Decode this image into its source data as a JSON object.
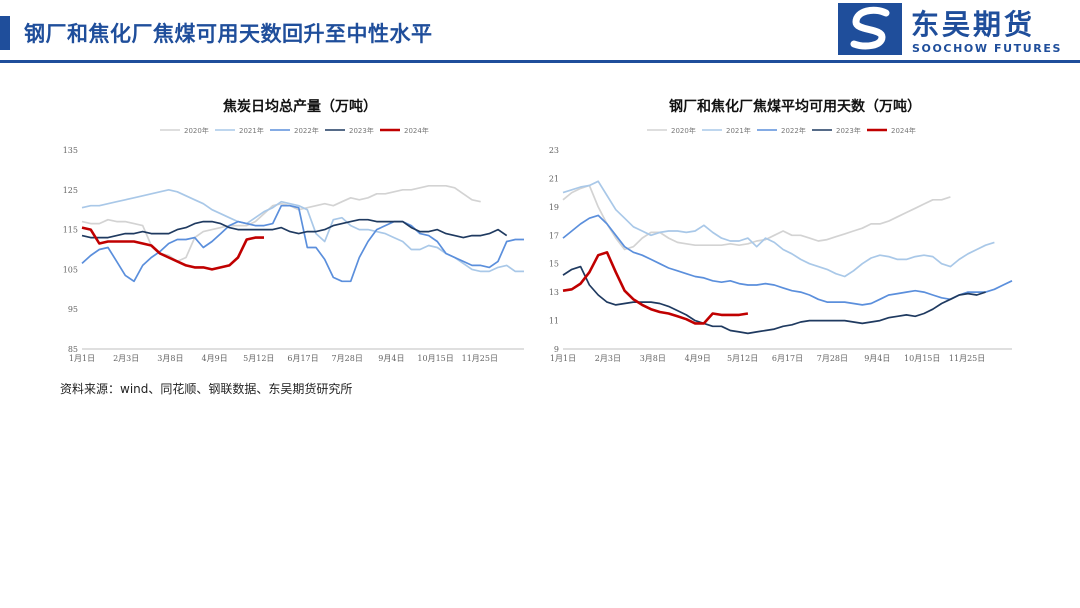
{
  "header": {
    "title": "钢厂和焦化厂焦煤可用天数回升至中性水平",
    "logo_cn": "东吴期货",
    "logo_en": "SOOCHOW FUTURES"
  },
  "source": "资料来源：wind、同花顺、钢联数据、东吴期货研究所",
  "colors": {
    "brand": "#1f4e9b",
    "2020年": "#d3d3d3",
    "2021年": "#a9c8e8",
    "2022年": "#5b8fdc",
    "2023年": "#1f3a60",
    "2024年": "#c00000"
  },
  "chart_data": [
    {
      "type": "line",
      "title": "焦炭日均总产量（万吨）",
      "xlabel": "",
      "ylabel": "",
      "x_ticks": [
        "1月1日",
        "2月3日",
        "3月8日",
        "4月9日",
        "5月12日",
        "6月17日",
        "7月28日",
        "9月4日",
        "10月15日",
        "11月25日"
      ],
      "y_ticks": [
        85,
        95,
        105,
        115,
        125,
        135
      ],
      "ylim": [
        85,
        135
      ],
      "weeks": 52,
      "legend_position": "top",
      "series": [
        {
          "name": "2020年",
          "values": [
            117,
            116.5,
            116.5,
            117.5,
            117,
            117,
            116.5,
            116,
            111,
            109,
            108.5,
            107,
            108,
            113,
            114.5,
            115,
            115.5,
            116,
            116,
            116,
            117,
            119,
            121,
            121.5,
            121,
            120,
            120.5,
            121,
            121.5,
            121,
            122,
            123,
            122.5,
            123,
            124,
            124,
            124.5,
            125,
            125,
            125.5,
            126,
            126,
            126,
            125.5,
            124,
            122.5,
            122,
            null,
            null,
            null,
            null,
            null
          ]
        },
        {
          "name": "2021年",
          "values": [
            120.5,
            121,
            121,
            121.5,
            122,
            122.5,
            123,
            123.5,
            124,
            124.5,
            125,
            124.5,
            123.5,
            122.5,
            121.5,
            120,
            119,
            118,
            117,
            116.5,
            118,
            119.5,
            120.5,
            122,
            121.5,
            121,
            120,
            114,
            112,
            117.5,
            118,
            116,
            115,
            115,
            114.5,
            114,
            113,
            112,
            110,
            110,
            111,
            110.5,
            109,
            108,
            106.5,
            105,
            104.5,
            104.5,
            105.5,
            106,
            104.5,
            104.5
          ]
        },
        {
          "name": "2022年",
          "values": [
            106.5,
            108.5,
            110,
            110.5,
            107,
            103.5,
            102,
            106,
            108,
            109.5,
            111.5,
            112.5,
            112.5,
            113,
            110.5,
            112,
            114,
            116,
            117,
            116.5,
            116,
            116,
            116.5,
            121,
            121,
            120.5,
            110.5,
            110.5,
            107.5,
            103,
            102,
            102,
            108,
            112,
            115,
            116,
            117,
            117,
            116,
            114,
            113.5,
            112,
            109,
            108,
            107,
            106,
            106,
            105.5,
            107,
            112,
            112.5,
            112.5
          ]
        },
        {
          "name": "2023年",
          "values": [
            113.5,
            113,
            113,
            113,
            113.5,
            114,
            114,
            114.5,
            114,
            114,
            114,
            115,
            115.5,
            116.5,
            117,
            117,
            116.5,
            115.5,
            115,
            115,
            115,
            115,
            115,
            115.5,
            114.5,
            114,
            114.5,
            114.5,
            115,
            116,
            116.5,
            117,
            117.5,
            117.5,
            117,
            117,
            117,
            117,
            115.5,
            114.5,
            114.5,
            115,
            114,
            113.5,
            113,
            113.5,
            113.5,
            114,
            115,
            113.5,
            null,
            null
          ]
        },
        {
          "name": "2024年",
          "values": [
            115.5,
            115,
            111.5,
            112,
            112,
            112,
            112,
            111.5,
            111,
            109,
            108,
            107,
            106,
            105.5,
            105.5,
            105,
            105.5,
            106,
            108,
            112.5,
            113,
            113,
            null,
            null,
            null,
            null,
            null,
            null,
            null,
            null,
            null,
            null,
            null,
            null,
            null,
            null,
            null,
            null,
            null,
            null,
            null,
            null,
            null,
            null,
            null,
            null,
            null,
            null,
            null,
            null,
            null,
            null
          ]
        }
      ]
    },
    {
      "type": "line",
      "title": "钢厂和焦化厂焦煤平均可用天数（万吨）",
      "xlabel": "",
      "ylabel": "",
      "x_ticks": [
        "1月1日",
        "2月3日",
        "3月8日",
        "4月9日",
        "5月12日",
        "6月17日",
        "7月28日",
        "9月4日",
        "10月15日",
        "11月25日"
      ],
      "y_ticks": [
        9,
        11,
        13,
        15,
        17,
        19,
        21,
        23
      ],
      "ylim": [
        9,
        23
      ],
      "weeks": 52,
      "legend_position": "top",
      "series": [
        {
          "name": "2020年",
          "values": [
            19.5,
            20,
            20.3,
            20.5,
            19,
            17.8,
            16.8,
            16,
            16.2,
            16.8,
            17.2,
            17.2,
            16.8,
            16.5,
            16.4,
            16.3,
            16.3,
            16.3,
            16.3,
            16.4,
            16.3,
            16.4,
            16.6,
            16.7,
            17,
            17.3,
            17,
            17,
            16.8,
            16.6,
            16.7,
            16.9,
            17.1,
            17.3,
            17.5,
            17.8,
            17.8,
            18,
            18.3,
            18.6,
            18.9,
            19.2,
            19.5,
            19.5,
            19.7,
            null,
            null,
            null,
            null,
            null,
            null,
            null
          ]
        },
        {
          "name": "2021年",
          "values": [
            20,
            20.2,
            20.4,
            20.5,
            20.8,
            19.8,
            18.8,
            18.2,
            17.6,
            17.3,
            17,
            17.2,
            17.3,
            17.3,
            17.2,
            17.3,
            17.7,
            17.2,
            16.8,
            16.6,
            16.6,
            16.8,
            16.2,
            16.8,
            16.5,
            16,
            15.7,
            15.3,
            15,
            14.8,
            14.6,
            14.3,
            14.1,
            14.5,
            15,
            15.4,
            15.6,
            15.5,
            15.3,
            15.3,
            15.5,
            15.6,
            15.5,
            15,
            14.8,
            15.3,
            15.7,
            16,
            16.3,
            16.5,
            null,
            null
          ]
        },
        {
          "name": "2022年",
          "values": [
            16.8,
            17.3,
            17.8,
            18.2,
            18.4,
            17.8,
            17,
            16.2,
            15.8,
            15.6,
            15.3,
            15,
            14.7,
            14.5,
            14.3,
            14.1,
            14,
            13.8,
            13.7,
            13.8,
            13.6,
            13.5,
            13.5,
            13.6,
            13.5,
            13.3,
            13.1,
            13,
            12.8,
            12.5,
            12.3,
            12.3,
            12.3,
            12.2,
            12.1,
            12.2,
            12.5,
            12.8,
            12.9,
            13,
            13.1,
            13,
            12.8,
            12.6,
            12.5,
            12.8,
            13,
            13,
            13,
            13.2,
            13.5,
            13.8
          ]
        },
        {
          "name": "2023年",
          "values": [
            14.2,
            14.6,
            14.8,
            13.5,
            12.8,
            12.3,
            12.1,
            12.2,
            12.3,
            12.3,
            12.3,
            12.2,
            12,
            11.7,
            11.4,
            11,
            10.8,
            10.6,
            10.6,
            10.3,
            10.2,
            10.1,
            10.2,
            10.3,
            10.4,
            10.6,
            10.7,
            10.9,
            11,
            11,
            11,
            11,
            11,
            10.9,
            10.8,
            10.9,
            11,
            11.2,
            11.3,
            11.4,
            11.3,
            11.5,
            11.8,
            12.2,
            12.5,
            12.8,
            12.9,
            12.8,
            13,
            null,
            null,
            null
          ]
        },
        {
          "name": "2024年",
          "values": [
            13.1,
            13.2,
            13.6,
            14.4,
            15.6,
            15.8,
            14.4,
            13.1,
            12.5,
            12.1,
            11.8,
            11.6,
            11.5,
            11.3,
            11.1,
            10.8,
            10.8,
            11.5,
            11.4,
            11.4,
            11.4,
            11.5,
            null,
            null,
            null,
            null,
            null,
            null,
            null,
            null,
            null,
            null,
            null,
            null,
            null,
            null,
            null,
            null,
            null,
            null,
            null,
            null,
            null,
            null,
            null,
            null,
            null,
            null,
            null,
            null,
            null,
            null
          ]
        }
      ]
    }
  ]
}
